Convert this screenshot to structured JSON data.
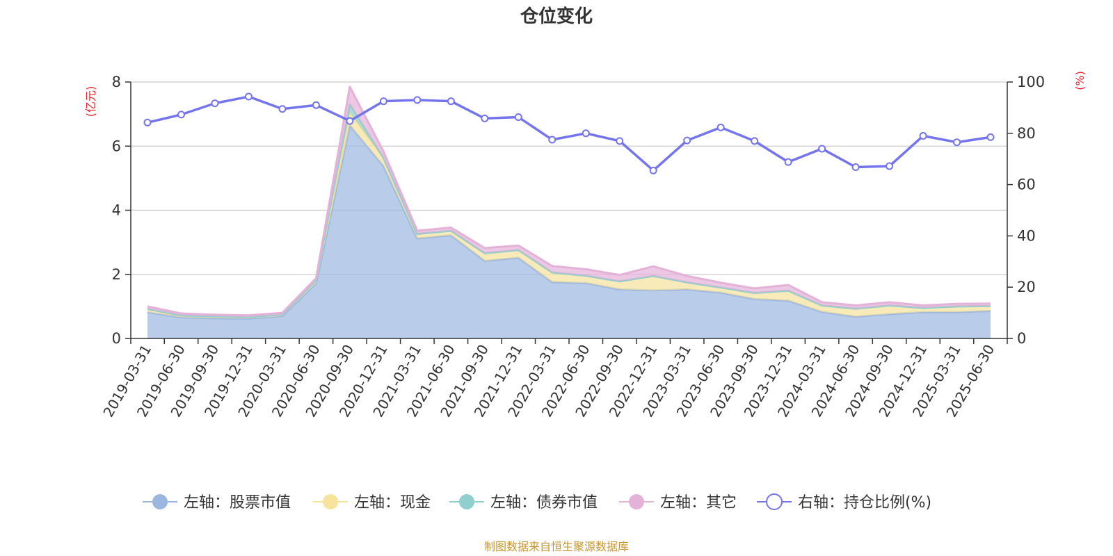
{
  "title": "仓位变化",
  "source": "制图数据来自恒生聚源数据库",
  "chart_data": {
    "type": "area",
    "title": "仓位变化",
    "left_axis": {
      "label": "(亿元)",
      "ylim": [
        0,
        8
      ],
      "ticks": [
        "0",
        "2",
        "4",
        "6",
        "8"
      ]
    },
    "right_axis": {
      "label": "(%)",
      "ylim": [
        0,
        100
      ],
      "ticks": [
        "0",
        "20",
        "40",
        "60",
        "80",
        "100"
      ]
    },
    "grid": true,
    "legend_position": "bottom",
    "categories": [
      "2019-03-31",
      "2019-06-30",
      "2019-09-30",
      "2019-12-31",
      "2020-03-31",
      "2020-06-30",
      "2020-09-30",
      "2020-12-31",
      "2021-03-31",
      "2021-06-30",
      "2021-09-30",
      "2021-12-31",
      "2022-03-31",
      "2022-06-30",
      "2022-09-30",
      "2022-12-31",
      "2023-03-31",
      "2023-06-30",
      "2023-09-30",
      "2023-12-31",
      "2024-03-31",
      "2024-06-30",
      "2024-09-30",
      "2024-12-31",
      "2025-03-31",
      "2025-06-30"
    ],
    "series": [
      {
        "name": "左轴：股票市值",
        "axis": "left",
        "stacked": true,
        "color": "#9bb7e0",
        "values": [
          0.82,
          0.66,
          0.63,
          0.62,
          0.7,
          1.72,
          6.65,
          5.38,
          3.12,
          3.22,
          2.42,
          2.52,
          1.76,
          1.73,
          1.53,
          1.5,
          1.53,
          1.43,
          1.23,
          1.18,
          0.83,
          0.68,
          0.76,
          0.82,
          0.82,
          0.86
        ]
      },
      {
        "name": "左轴：现金",
        "axis": "left",
        "stacked": true,
        "color": "#f7e39b",
        "values": [
          0.1,
          0.06,
          0.06,
          0.05,
          0.05,
          0.1,
          0.4,
          0.25,
          0.14,
          0.14,
          0.24,
          0.24,
          0.3,
          0.23,
          0.25,
          0.45,
          0.22,
          0.16,
          0.19,
          0.31,
          0.2,
          0.25,
          0.27,
          0.13,
          0.18,
          0.15
        ]
      },
      {
        "name": "左轴：债券市值",
        "axis": "left",
        "stacked": true,
        "color": "#8fd0cf",
        "values": [
          0,
          0,
          0,
          0,
          0,
          0,
          0.25,
          0,
          0,
          0,
          0,
          0,
          0,
          0,
          0,
          0,
          0,
          0,
          0,
          0,
          0,
          0,
          0,
          0,
          0,
          0
        ]
      },
      {
        "name": "左轴：其它",
        "axis": "left",
        "stacked": true,
        "color": "#e4b1d8",
        "values": [
          0.08,
          0.06,
          0.05,
          0.05,
          0.05,
          0.06,
          0.55,
          0.2,
          0.1,
          0.1,
          0.16,
          0.14,
          0.2,
          0.2,
          0.2,
          0.3,
          0.2,
          0.15,
          0.14,
          0.18,
          0.1,
          0.1,
          0.1,
          0.08,
          0.08,
          0.08
        ]
      },
      {
        "name": "右轴：持仓比例(%)",
        "axis": "right",
        "type": "line",
        "color": "#7474ee",
        "values": [
          84.2,
          87.3,
          91.7,
          94.3,
          89.5,
          91.0,
          84.8,
          92.5,
          93.0,
          92.5,
          85.8,
          86.3,
          77.5,
          80.0,
          77.0,
          65.5,
          77.2,
          82.3,
          77.0,
          68.8,
          74.0,
          66.8,
          67.2,
          79.0,
          76.5,
          78.5
        ]
      }
    ]
  },
  "legend": [
    {
      "label": "左轴：股票市值",
      "color": "#9bb7e0",
      "marker": "filled"
    },
    {
      "label": "左轴：现金",
      "color": "#f7e39b",
      "marker": "filled"
    },
    {
      "label": "左轴：债券市值",
      "color": "#8fd0cf",
      "marker": "filled"
    },
    {
      "label": "左轴：其它",
      "color": "#e4b1d8",
      "marker": "filled"
    },
    {
      "label": "右轴：持仓比例(%)",
      "color": "#7474ee",
      "marker": "hollow"
    }
  ]
}
